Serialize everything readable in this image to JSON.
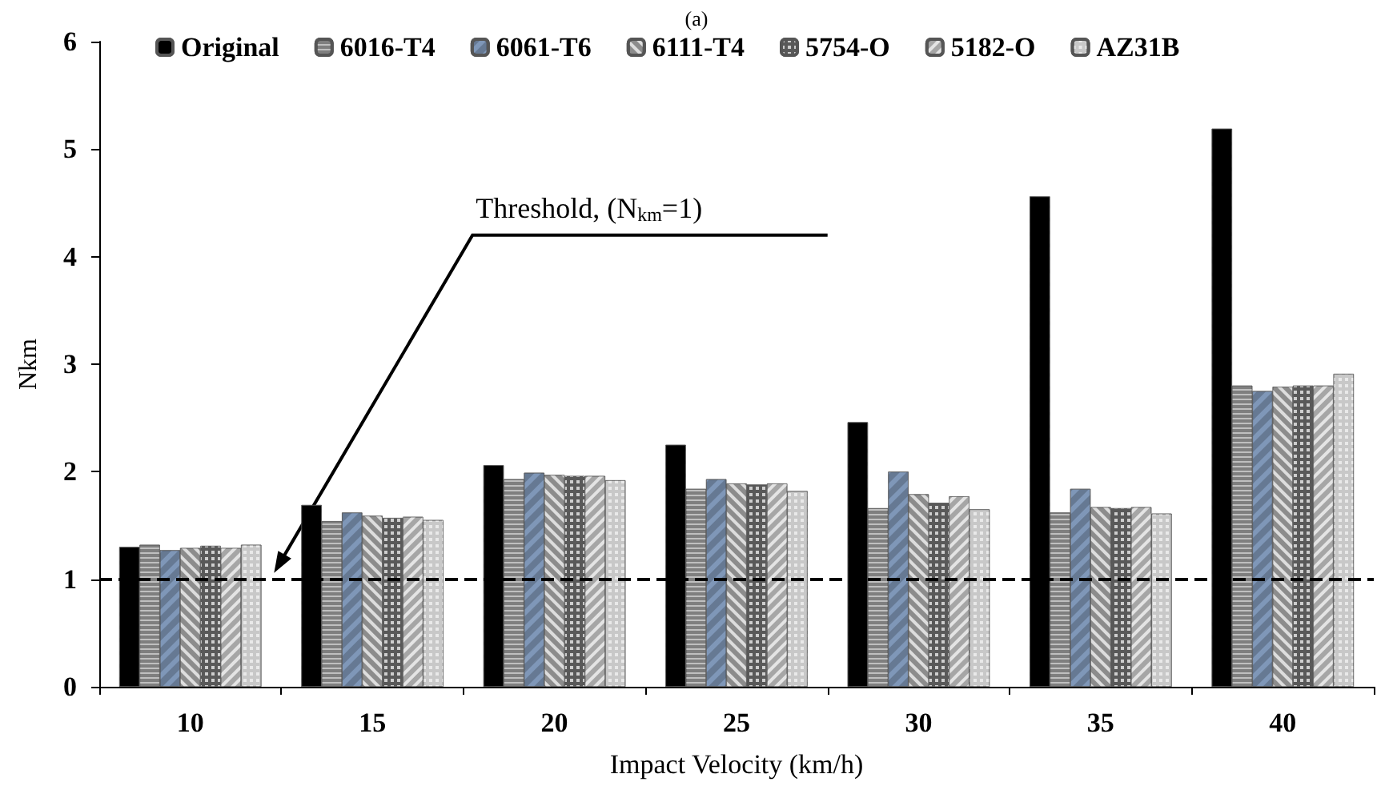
{
  "chart_data": {
    "type": "bar",
    "title": "(a)",
    "xlabel": "Impact Velocity (km/h)",
    "ylabel": "Nkm",
    "categories": [
      "10",
      "15",
      "20",
      "25",
      "30",
      "35",
      "40"
    ],
    "series": [
      {
        "name": "Original",
        "color": "#000000",
        "values": [
          1.3,
          1.69,
          2.06,
          2.25,
          2.46,
          4.56,
          5.19
        ]
      },
      {
        "name": "6016-T4",
        "color": "#7f7f7f",
        "values": [
          1.32,
          1.54,
          1.93,
          1.84,
          1.66,
          1.62,
          2.8
        ]
      },
      {
        "name": "6061-T6",
        "color": "#7f97b8",
        "values": [
          1.27,
          1.62,
          1.99,
          1.93,
          2.0,
          1.84,
          2.75
        ]
      },
      {
        "name": "6111-T4",
        "color": "#8c8c8c",
        "values": [
          1.29,
          1.59,
          1.97,
          1.89,
          1.79,
          1.67,
          2.79
        ]
      },
      {
        "name": "5754-O",
        "color": "#595959",
        "values": [
          1.31,
          1.57,
          1.96,
          1.88,
          1.71,
          1.66,
          2.8
        ]
      },
      {
        "name": "5182-O",
        "color": "#a6a6a6",
        "values": [
          1.29,
          1.58,
          1.96,
          1.89,
          1.77,
          1.67,
          2.8
        ]
      },
      {
        "name": "AZ31B",
        "color": "#c8c8c8",
        "values": [
          1.32,
          1.55,
          1.92,
          1.82,
          1.65,
          1.61,
          2.91
        ]
      }
    ],
    "ylim": [
      0,
      6
    ],
    "yticks": [
      0,
      1,
      2,
      3,
      4,
      5,
      6
    ],
    "grid": false,
    "legend": "top",
    "annotations": [
      "Threshold, (N$_{km}$=1)"
    ],
    "ref_lines": [
      {
        "axis": "y",
        "value": 1,
        "line_style": "dashed",
        "color": "#000000"
      }
    ]
  }
}
